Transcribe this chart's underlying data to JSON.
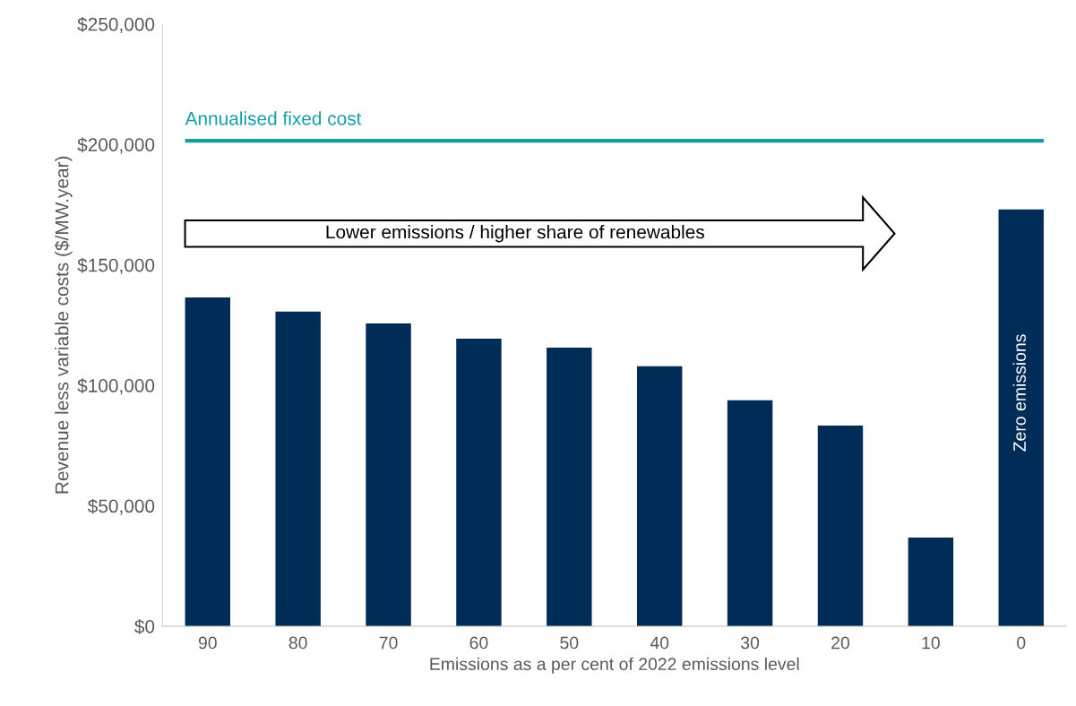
{
  "chart_data": {
    "type": "bar",
    "xlabel": "Emissions as a per cent of 2022 emissions level",
    "ylabel": "Revenue less variable costs ($/MW.year)",
    "categories": [
      "90",
      "80",
      "70",
      "60",
      "50",
      "40",
      "30",
      "20",
      "10",
      "0"
    ],
    "values": [
      136500,
      130600,
      125700,
      119400,
      115700,
      107900,
      93800,
      83300,
      36800,
      173000
    ],
    "color": "#002d57",
    "ylim": [
      0,
      250000
    ],
    "yticks": [
      {
        "value": 0,
        "label": "$0"
      },
      {
        "value": 50000,
        "label": "$50,000"
      },
      {
        "value": 100000,
        "label": "$100,000"
      },
      {
        "value": 150000,
        "label": "$150,000"
      },
      {
        "value": 200000,
        "label": "$200,000"
      },
      {
        "value": 250000,
        "label": "$250,000"
      }
    ],
    "grid": false,
    "ref_lines": [
      {
        "axis": "y",
        "value": 201500,
        "label": "Annualised fixed cost",
        "color": "#119ea6",
        "line_style": "solid"
      }
    ],
    "annotations": [
      "Lower emissions / higher share of renewables",
      "Zero emissions"
    ]
  }
}
